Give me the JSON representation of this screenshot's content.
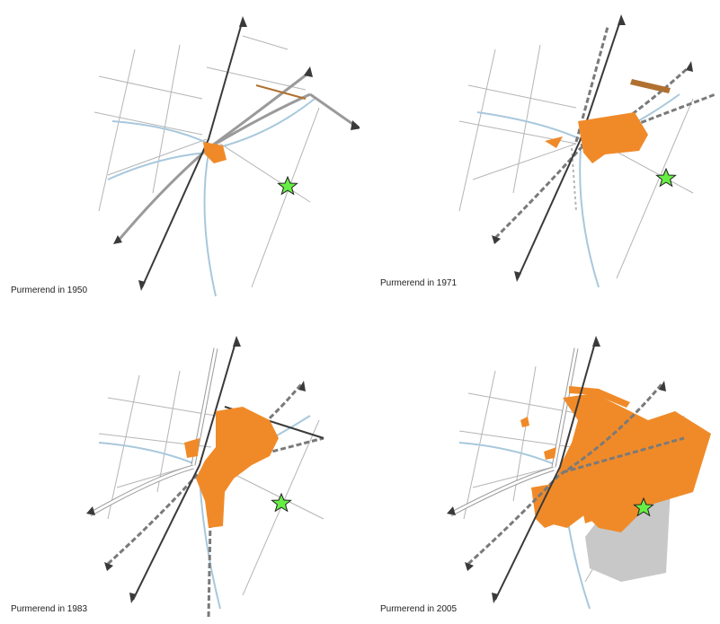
{
  "colors": {
    "urban_area": "#f08a28",
    "water": "#a8c8dc",
    "road_main": "#3a3a3a",
    "road_secondary": "#9a9a9a",
    "railway": "#6a6a6a",
    "existing_suburb": "#c8c8c8",
    "star_marker": "#66ee44"
  },
  "icons": {
    "marker": "star-icon",
    "arrow": "arrow-head-icon"
  },
  "panels": [
    {
      "caption": "Purmerend in 1950"
    },
    {
      "caption": "Purmerend in 1971"
    },
    {
      "caption": "Purmerend in 1983"
    },
    {
      "caption": "Purmerend in 2005"
    }
  ]
}
